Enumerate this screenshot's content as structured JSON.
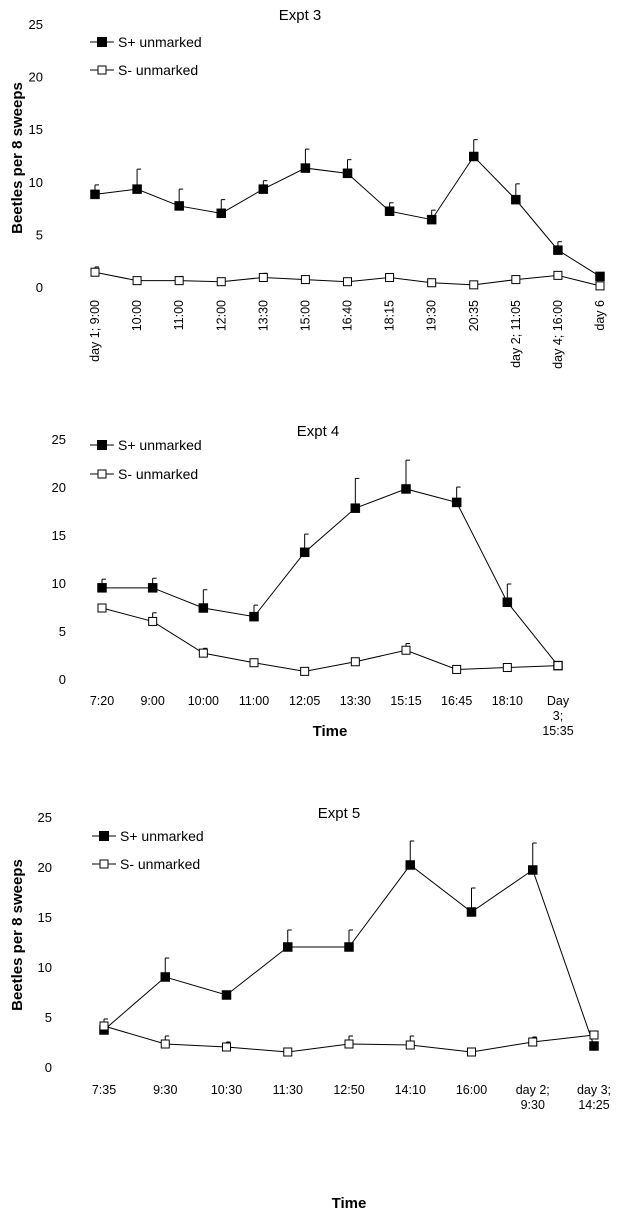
{
  "chart_data": [
    {
      "type": "line",
      "title": "Expt 3",
      "xlabel": "",
      "ylabel": "Beetles per 8 sweeps",
      "ylim": [
        0,
        25
      ],
      "yticks": [
        0,
        5,
        10,
        15,
        20,
        25
      ],
      "grid": false,
      "legend": "top-left",
      "categories": [
        "day 1; 9:00",
        "10:00",
        "11:00",
        "12:00",
        "13:30",
        "15:00",
        "16:40",
        "18:15",
        "19:30",
        "20:35",
        "day 2; 11:05",
        "day 4; 16:00",
        "day 6"
      ],
      "category_label_lines": [
        [
          "day 1; 9:00"
        ],
        [
          "10:00"
        ],
        [
          "11:00"
        ],
        [
          "12:00"
        ],
        [
          "13:30"
        ],
        [
          "15:00"
        ],
        [
          "16:40"
        ],
        [
          "18:15"
        ],
        [
          "19:30"
        ],
        [
          "20:35"
        ],
        [
          "day 2; 11:05"
        ],
        [
          "day 4; 16:00"
        ],
        [
          "day 6"
        ]
      ],
      "series": [
        {
          "name": "S+ unmarked",
          "marker": "filled-square",
          "values": [
            8.9,
            9.4,
            7.8,
            7.1,
            9.4,
            11.4,
            10.9,
            7.3,
            6.5,
            12.5,
            8.4,
            3.6,
            1.1
          ],
          "errors": [
            0.9,
            1.9,
            1.6,
            1.3,
            0.8,
            1.8,
            1.3,
            0.8,
            0.9,
            1.6,
            1.5,
            0.8,
            0
          ]
        },
        {
          "name": "S- unmarked",
          "marker": "open-square",
          "values": [
            1.5,
            0.7,
            0.7,
            0.6,
            1.0,
            0.8,
            0.6,
            1.0,
            0.5,
            0.3,
            0.8,
            1.2,
            0.2
          ],
          "errors": [
            0.5,
            0,
            0.4,
            0,
            0.4,
            0,
            0,
            0.3,
            0,
            0,
            0,
            0.3,
            0
          ]
        }
      ]
    },
    {
      "type": "line",
      "title": "Expt 4",
      "xlabel": "Time",
      "ylabel": "",
      "ylim": [
        0,
        25
      ],
      "yticks": [
        0,
        5,
        10,
        15,
        20,
        25
      ],
      "grid": false,
      "legend": "top-left",
      "categories": [
        "7:20",
        "9:00",
        "10:00",
        "11:00",
        "12:05",
        "13:30",
        "15:15",
        "16:45",
        "18:10",
        "Day 3; 15:35"
      ],
      "category_label_lines": [
        [
          "7:20"
        ],
        [
          "9:00"
        ],
        [
          "10:00"
        ],
        [
          "11:00"
        ],
        [
          "12:05"
        ],
        [
          "13:30"
        ],
        [
          "15:15"
        ],
        [
          "16:45"
        ],
        [
          "18:10"
        ],
        [
          "Day",
          "3;",
          "15:35"
        ]
      ],
      "series": [
        {
          "name": "S+ unmarked",
          "marker": "filled-square",
          "values": [
            9.6,
            9.6,
            7.5,
            6.6,
            13.3,
            17.9,
            19.9,
            18.5,
            8.1,
            1.5
          ],
          "errors": [
            0.9,
            1.0,
            1.9,
            1.2,
            1.9,
            3.1,
            3.0,
            1.6,
            1.9,
            0
          ]
        },
        {
          "name": "S- unmarked",
          "marker": "open-square",
          "values": [
            7.5,
            6.1,
            2.8,
            1.8,
            0.9,
            1.9,
            3.1,
            1.1,
            1.3,
            1.5
          ],
          "errors": [
            0,
            0.9,
            0.5,
            0.3,
            0,
            0,
            0.7,
            0.4,
            0,
            0
          ]
        }
      ]
    },
    {
      "type": "line",
      "title": "Expt 5",
      "xlabel": "Time",
      "ylabel": "Beetles per 8 sweeps",
      "ylim": [
        0,
        25
      ],
      "yticks": [
        0,
        5,
        10,
        15,
        20,
        25
      ],
      "grid": false,
      "legend": "top-left",
      "categories": [
        "7:35",
        "9:30",
        "10:30",
        "11:30",
        "12:50",
        "14:10",
        "16:00",
        "day 2; 9:30",
        "day 3; 14:25"
      ],
      "category_label_lines": [
        [
          "7:35"
        ],
        [
          "9:30"
        ],
        [
          "10:30"
        ],
        [
          "11:30"
        ],
        [
          "12:50"
        ],
        [
          "14:10"
        ],
        [
          "16:00"
        ],
        [
          "day 2;",
          "9:30"
        ],
        [
          "day 3;",
          "14:25"
        ]
      ],
      "series": [
        {
          "name": "S+ unmarked",
          "marker": "filled-square",
          "values": [
            3.8,
            9.1,
            7.3,
            12.1,
            12.1,
            20.3,
            15.6,
            19.8,
            2.2
          ],
          "errors": [
            0,
            1.9,
            0,
            1.7,
            1.7,
            2.4,
            2.4,
            2.7,
            0
          ]
        },
        {
          "name": "S- unmarked",
          "marker": "open-square",
          "values": [
            4.2,
            2.4,
            2.1,
            1.6,
            2.4,
            2.3,
            1.6,
            2.6,
            3.3
          ],
          "errors": [
            0.7,
            0.8,
            0.5,
            0.3,
            0.8,
            0.9,
            0,
            0.5,
            0.4
          ]
        }
      ]
    }
  ]
}
